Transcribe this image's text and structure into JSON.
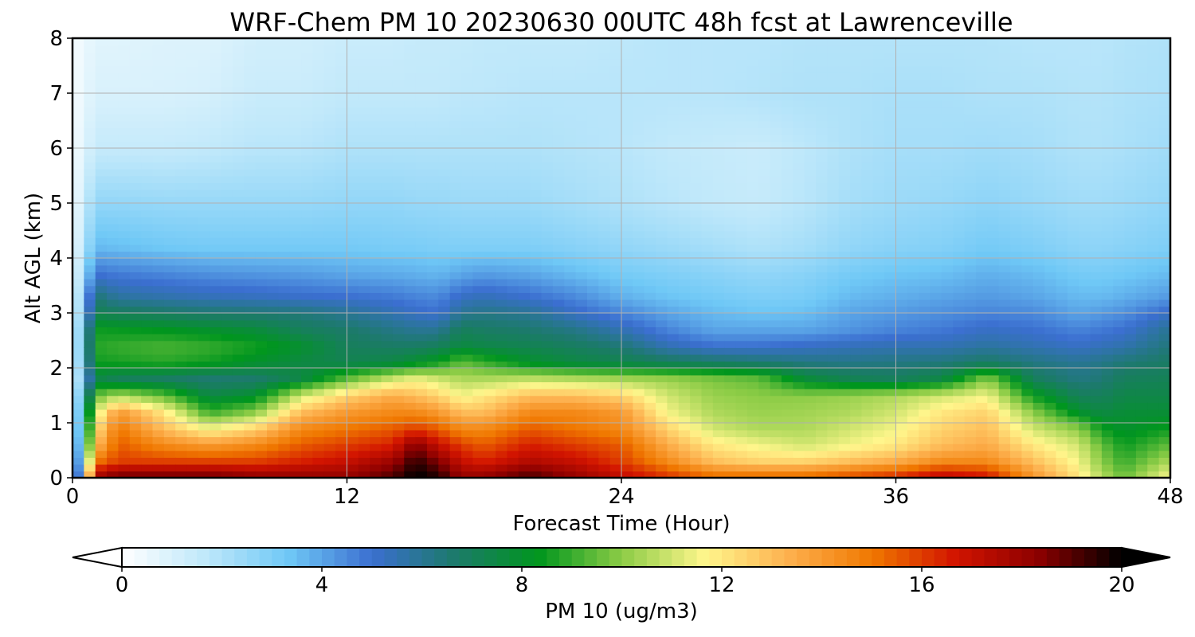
{
  "chart_data": {
    "type": "heatmap",
    "title": "WRF-Chem PM 10  20230630 00UTC 48h fcst at Lawrenceville",
    "xlabel": "Forecast Time (Hour)",
    "ylabel": "Alt AGL (km)",
    "xlim": [
      0,
      48
    ],
    "ylim": [
      0,
      8
    ],
    "x_ticks": [
      0,
      12,
      24,
      36,
      48
    ],
    "y_ticks": [
      0,
      1,
      2,
      3,
      4,
      5,
      6,
      7,
      8
    ],
    "grid": true,
    "colorbar": {
      "label": "PM 10  (ug/m3)",
      "range": [
        0,
        20
      ],
      "ticks": [
        0,
        4,
        8,
        12,
        16,
        20
      ],
      "extend": "both",
      "orientation": "horizontal",
      "colors": [
        "#ffffff",
        "#bfe8fa",
        "#6fc8f6",
        "#3b6fd0",
        "#1c7a6a",
        "#00961e",
        "#8ccc46",
        "#fff68c",
        "#fdb04e",
        "#f07800",
        "#d21400",
        "#8c0000",
        "#000000"
      ]
    },
    "x_hours": [
      0,
      1,
      2,
      4,
      6,
      8,
      10,
      12,
      14,
      15,
      16,
      17,
      18,
      20,
      22,
      24,
      26,
      28,
      30,
      32,
      34,
      36,
      38,
      40,
      42,
      44,
      45,
      46,
      48
    ],
    "y_km": [
      0.05,
      0.3,
      0.6,
      0.9,
      1.2,
      1.5,
      1.8,
      2.1,
      2.4,
      2.7,
      3.0,
      3.3,
      3.7,
      4.2,
      5.0,
      6.0,
      7.0,
      8.0
    ],
    "pm10": [
      [
        0.5,
        0.5,
        0.5,
        0.4,
        0.4,
        0.4,
        0.3,
        0.3,
        0.3,
        0.3,
        0.3,
        0.3,
        0.3,
        0.3,
        0.2,
        0.2,
        0.2,
        0.2
      ],
      [
        17.5,
        15.0,
        13.0,
        12.0,
        11.0,
        9.5,
        7.5,
        8.5,
        8.8,
        8.5,
        7.2,
        6.5,
        5.0,
        3.6,
        2.6,
        1.5,
        1.0,
        0.8
      ],
      [
        18.5,
        16.0,
        15.5,
        15.0,
        14.0,
        10.5,
        7.0,
        8.6,
        9.0,
        8.4,
        7.0,
        5.8,
        4.8,
        3.5,
        2.6,
        1.5,
        1.0,
        0.8
      ],
      [
        18.5,
        16.0,
        14.5,
        13.0,
        12.0,
        9.5,
        6.8,
        8.8,
        9.2,
        8.3,
        6.8,
        5.6,
        4.6,
        3.3,
        2.5,
        1.5,
        1.0,
        0.9
      ],
      [
        18.5,
        16.0,
        14.0,
        11.5,
        9.0,
        7.5,
        6.5,
        8.5,
        9.0,
        8.0,
        6.6,
        5.4,
        4.4,
        3.2,
        2.5,
        1.6,
        1.1,
        0.9
      ],
      [
        18.0,
        16.0,
        14.5,
        12.5,
        10.0,
        8.0,
        6.6,
        8.0,
        8.6,
        7.7,
        6.5,
        5.3,
        4.3,
        3.2,
        2.5,
        1.8,
        1.4,
        1.2
      ],
      [
        18.0,
        16.5,
        15.5,
        14.5,
        13.0,
        11.0,
        7.5,
        7.5,
        8.0,
        7.0,
        6.4,
        5.1,
        4.2,
        3.2,
        2.5,
        1.8,
        1.4,
        1.2
      ],
      [
        18.0,
        17.0,
        16.0,
        15.0,
        14.0,
        12.5,
        9.5,
        7.2,
        7.0,
        6.7,
        6.0,
        5.0,
        4.0,
        3.2,
        2.6,
        2.0,
        1.6,
        1.4
      ],
      [
        19.0,
        18.0,
        16.5,
        15.5,
        14.5,
        13.5,
        11.0,
        7.5,
        6.8,
        6.2,
        5.5,
        4.8,
        3.9,
        3.1,
        2.6,
        2.0,
        1.6,
        1.4
      ],
      [
        20.0,
        19.5,
        18.5,
        16.0,
        14.5,
        13.0,
        11.5,
        8.0,
        6.8,
        6.0,
        5.2,
        4.6,
        3.8,
        3.1,
        2.5,
        2.0,
        1.6,
        1.5
      ],
      [
        19.5,
        18.5,
        17.0,
        15.5,
        14.0,
        12.5,
        11.0,
        8.5,
        7.0,
        6.0,
        5.0,
        4.5,
        3.7,
        3.0,
        2.5,
        2.0,
        1.6,
        1.5
      ],
      [
        18.0,
        17.0,
        16.0,
        14.5,
        13.0,
        11.5,
        10.5,
        9.5,
        7.6,
        7.0,
        6.0,
        5.2,
        4.0,
        3.0,
        2.4,
        2.0,
        1.7,
        1.5
      ],
      [
        18.0,
        16.5,
        15.5,
        14.5,
        13.0,
        12.0,
        10.5,
        9.0,
        7.4,
        6.8,
        6.2,
        5.4,
        4.2,
        3.0,
        2.4,
        2.0,
        1.7,
        1.6
      ],
      [
        19.0,
        17.5,
        16.5,
        15.5,
        14.5,
        13.0,
        10.8,
        8.0,
        7.2,
        6.6,
        6.0,
        5.0,
        4.0,
        3.0,
        2.4,
        2.0,
        1.8,
        1.6
      ],
      [
        18.0,
        17.0,
        16.0,
        15.0,
        14.5,
        13.0,
        10.6,
        7.5,
        6.9,
        6.2,
        5.2,
        4.5,
        3.6,
        2.8,
        2.2,
        1.9,
        1.8,
        1.6
      ],
      [
        17.0,
        16.0,
        15.5,
        14.5,
        14.0,
        12.5,
        10.4,
        7.3,
        6.5,
        5.5,
        4.6,
        3.8,
        3.2,
        2.6,
        2.0,
        1.8,
        1.8,
        1.7
      ],
      [
        16.0,
        14.5,
        13.5,
        12.5,
        11.5,
        11.0,
        10.2,
        7.0,
        5.5,
        4.6,
        4.0,
        3.4,
        3.0,
        2.4,
        1.8,
        1.6,
        1.8,
        1.8
      ],
      [
        15.0,
        13.0,
        12.0,
        11.0,
        10.5,
        10.2,
        9.8,
        6.8,
        5.0,
        4.0,
        3.6,
        3.2,
        2.8,
        2.2,
        1.6,
        1.5,
        1.8,
        1.8
      ],
      [
        15.0,
        12.5,
        11.5,
        10.5,
        10.2,
        10.0,
        9.5,
        6.6,
        5.0,
        4.0,
        3.4,
        3.0,
        2.6,
        2.0,
        1.5,
        1.4,
        1.9,
        1.8
      ],
      [
        15.0,
        12.5,
        11.0,
        10.5,
        10.3,
        10.0,
        7.8,
        6.3,
        5.2,
        4.0,
        3.5,
        3.1,
        2.8,
        2.2,
        1.8,
        1.7,
        2.0,
        1.9
      ],
      [
        15.5,
        13.0,
        11.5,
        11.0,
        10.5,
        10.2,
        7.2,
        6.2,
        5.4,
        4.3,
        4.0,
        3.6,
        3.2,
        2.6,
        2.2,
        2.0,
        2.0,
        1.9
      ],
      [
        16.0,
        13.5,
        12.0,
        11.5,
        11.0,
        10.5,
        7.0,
        6.3,
        5.5,
        4.6,
        4.2,
        3.8,
        3.4,
        2.8,
        2.4,
        2.2,
        2.1,
        1.9
      ],
      [
        17.0,
        14.5,
        13.0,
        12.5,
        12.0,
        11.0,
        7.5,
        6.4,
        5.5,
        4.8,
        4.4,
        4.0,
        3.5,
        2.9,
        2.5,
        2.2,
        2.1,
        1.9
      ],
      [
        16.5,
        14.5,
        13.5,
        13.0,
        12.5,
        11.5,
        10.0,
        6.8,
        5.8,
        5.2,
        4.6,
        4.2,
        3.8,
        3.2,
        2.7,
        2.3,
        2.0,
        1.9
      ],
      [
        14.0,
        13.0,
        12.0,
        11.0,
        10.0,
        8.5,
        7.0,
        6.3,
        5.5,
        5.0,
        4.5,
        4.0,
        3.6,
        3.0,
        2.5,
        2.2,
        2.0,
        1.8
      ],
      [
        12.0,
        11.5,
        11.0,
        10.0,
        8.0,
        7.0,
        6.3,
        6.0,
        5.2,
        4.6,
        4.0,
        3.6,
        3.2,
        2.7,
        2.3,
        2.0,
        1.9,
        1.8
      ],
      [
        10.5,
        10.0,
        9.5,
        8.5,
        7.5,
        7.0,
        6.5,
        6.2,
        5.4,
        4.8,
        4.2,
        3.6,
        3.2,
        2.7,
        2.3,
        2.0,
        1.9,
        1.8
      ],
      [
        9.5,
        9.0,
        8.5,
        8.0,
        7.8,
        7.4,
        7.0,
        6.5,
        5.6,
        5.0,
        4.4,
        3.8,
        3.3,
        2.8,
        2.4,
        2.1,
        2.0,
        1.9
      ],
      [
        11.5,
        10.5,
        9.5,
        8.5,
        7.8,
        7.4,
        7.1,
        6.8,
        6.4,
        6.0,
        5.2,
        4.2,
        3.6,
        3.0,
        2.6,
        2.3,
        2.1,
        2.0
      ]
    ]
  }
}
